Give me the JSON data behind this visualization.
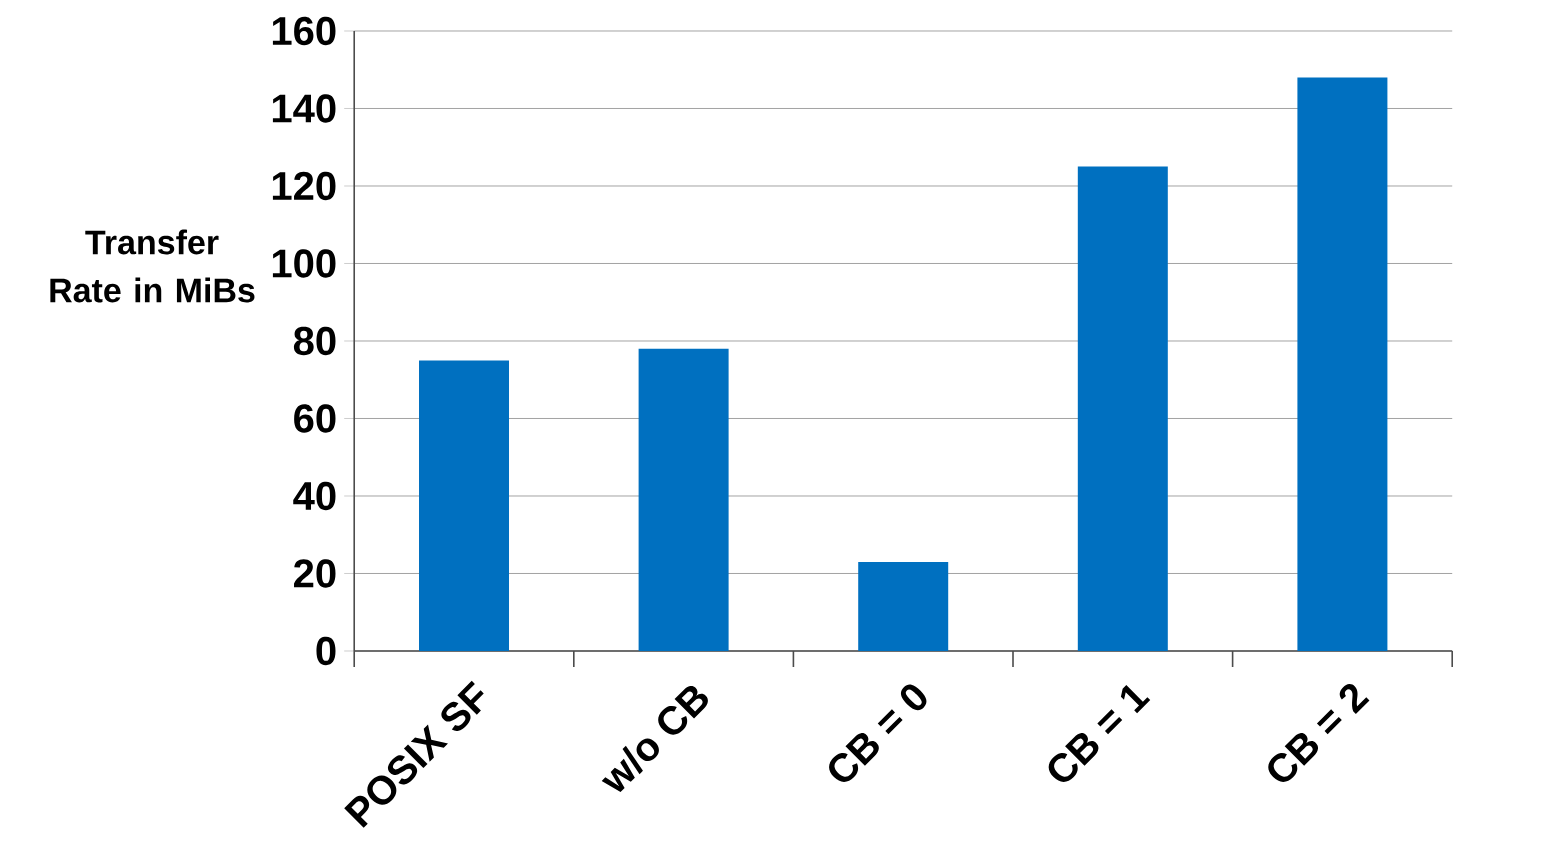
{
  "chart_data": {
    "type": "bar",
    "ylabel": "Transfer Rate in MiBs",
    "categories": [
      "POSIX SF",
      "w/o CB",
      "CB = 0",
      "CB = 1",
      "CB = 2"
    ],
    "values": [
      75,
      78,
      23,
      125,
      148
    ],
    "color": "#0070c0",
    "ylim": [
      0,
      160
    ],
    "yticks": [
      0,
      20,
      40,
      60,
      80,
      100,
      120,
      140,
      160
    ],
    "grid": "y"
  }
}
